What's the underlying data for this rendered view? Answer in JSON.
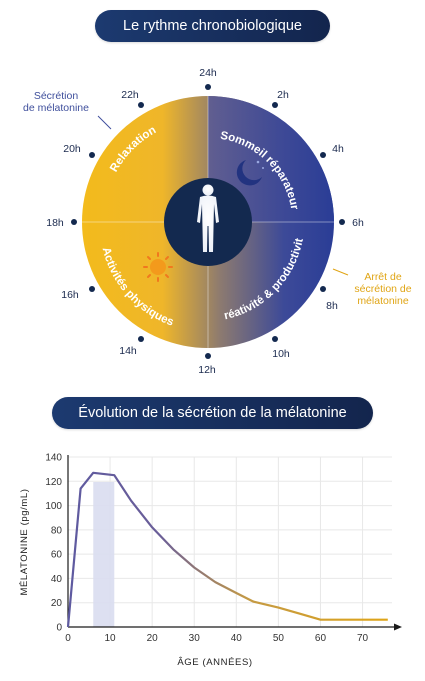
{
  "header": {
    "title": "Le rythme chronobiologique"
  },
  "clock": {
    "hours": [
      "24h",
      "2h",
      "4h",
      "6h",
      "8h",
      "10h",
      "12h",
      "14h",
      "16h",
      "18h",
      "20h",
      "22h"
    ],
    "segments": {
      "top_right": "Sommeil réparateur",
      "top_left": "Relaxation",
      "bottom_left": "Activités physiques",
      "bottom_right": "Créativité & productivité"
    },
    "note_secretion": [
      "Sécrétion",
      "de mélatonine"
    ],
    "note_stop": [
      "Arrêt de",
      "sécrétion de",
      "mélatonine"
    ],
    "icons": [
      "moon-icon",
      "sun-icon",
      "person-icon"
    ],
    "colors": {
      "yellow": "#f3bb1c",
      "blue": "#2a3d96",
      "navy": "#13294f"
    }
  },
  "section2": {
    "title": "Évolution de la sécrétion de la mélatonine"
  },
  "chart_data": {
    "type": "line",
    "title": "Évolution de la sécrétion de la mélatonine",
    "xlabel": "Âge (années)",
    "ylabel": "Mélatonine (pg/mL)",
    "xlim": [
      0,
      77
    ],
    "ylim": [
      0,
      140
    ],
    "xticks": [
      0,
      10,
      20,
      30,
      40,
      50,
      60,
      70
    ],
    "yticks": [
      0,
      20,
      40,
      60,
      80,
      100,
      120,
      140
    ],
    "x": [
      0,
      3,
      6,
      11,
      15,
      20,
      25,
      30,
      35,
      40,
      44,
      50,
      55,
      60,
      65,
      70,
      76
    ],
    "y": [
      0,
      114,
      127,
      125,
      104,
      82,
      64,
      49,
      37,
      28,
      21,
      16,
      11,
      6,
      6,
      6,
      6
    ],
    "highlight_range": [
      6,
      11
    ],
    "grid": true,
    "line_gradient": [
      "#5e5aa0",
      "#e0a515"
    ]
  }
}
